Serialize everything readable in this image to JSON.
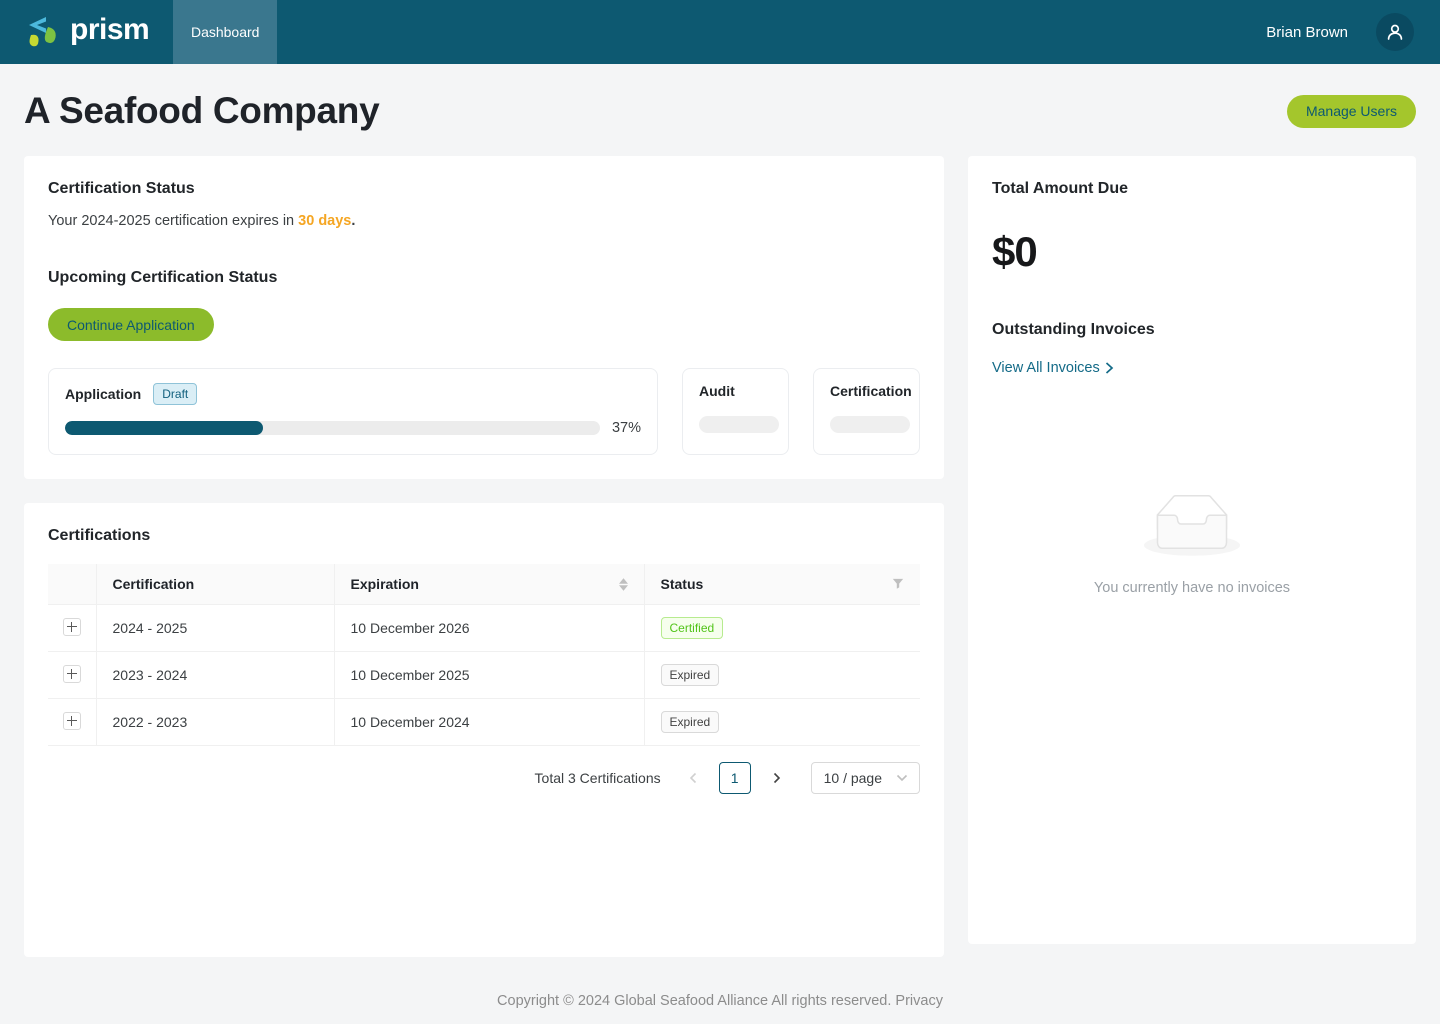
{
  "colors": {
    "navbar_bg": "#0d5971",
    "navbar_tab_active_bg": "#3a778e",
    "brand_green": "#a4c62c",
    "button_green": "#8cbb2b",
    "accent_orange": "#f5a623",
    "link_teal": "#136a87",
    "progress_teal": "#0d5971",
    "success_green": "#52c41a",
    "draft_badge_bg": "#daeef6"
  },
  "navbar": {
    "brand": "prism",
    "active_tab": "Dashboard",
    "user_name": "Brian Brown"
  },
  "page": {
    "title": "A Seafood Company",
    "manage_users_button": "Manage Users"
  },
  "certification_status": {
    "title": "Certification Status",
    "expiry_text_prefix": "Your 2024-2025 certification expires in ",
    "expiry_highlight": "30 days",
    "expiry_text_suffix": ".",
    "upcoming_title": "Upcoming Certification Status",
    "continue_button": "Continue Application",
    "application_step": {
      "label": "Application",
      "badge": "Draft",
      "progress_percent": 37,
      "progress_label": "37%"
    },
    "audit_step": {
      "label": "Audit"
    },
    "certification_step": {
      "label": "Certification"
    }
  },
  "certifications_table": {
    "title": "Certifications",
    "columns": {
      "certification": "Certification",
      "expiration": "Expiration",
      "status": "Status"
    },
    "rows": [
      {
        "certification": "2024 - 2025",
        "expiration": "10 December 2026",
        "status": "Certified"
      },
      {
        "certification": "2023 - 2024",
        "expiration": "10 December 2025",
        "status": "Expired"
      },
      {
        "certification": "2022 - 2023",
        "expiration": "10 December 2024",
        "status": "Expired"
      }
    ],
    "pagination": {
      "total_text": "Total 3 Certifications",
      "current_page": "1",
      "page_size_label": "10 / page"
    }
  },
  "invoices_panel": {
    "total_due_title": "Total Amount Due",
    "total_due_value": "$0",
    "outstanding_title": "Outstanding Invoices",
    "view_all_link": "View All Invoices",
    "empty_message": "You currently have no invoices"
  },
  "footer": {
    "copyright": "Copyright © 2024 Global Seafood Alliance All rights reserved.",
    "privacy_link": "Privacy"
  }
}
